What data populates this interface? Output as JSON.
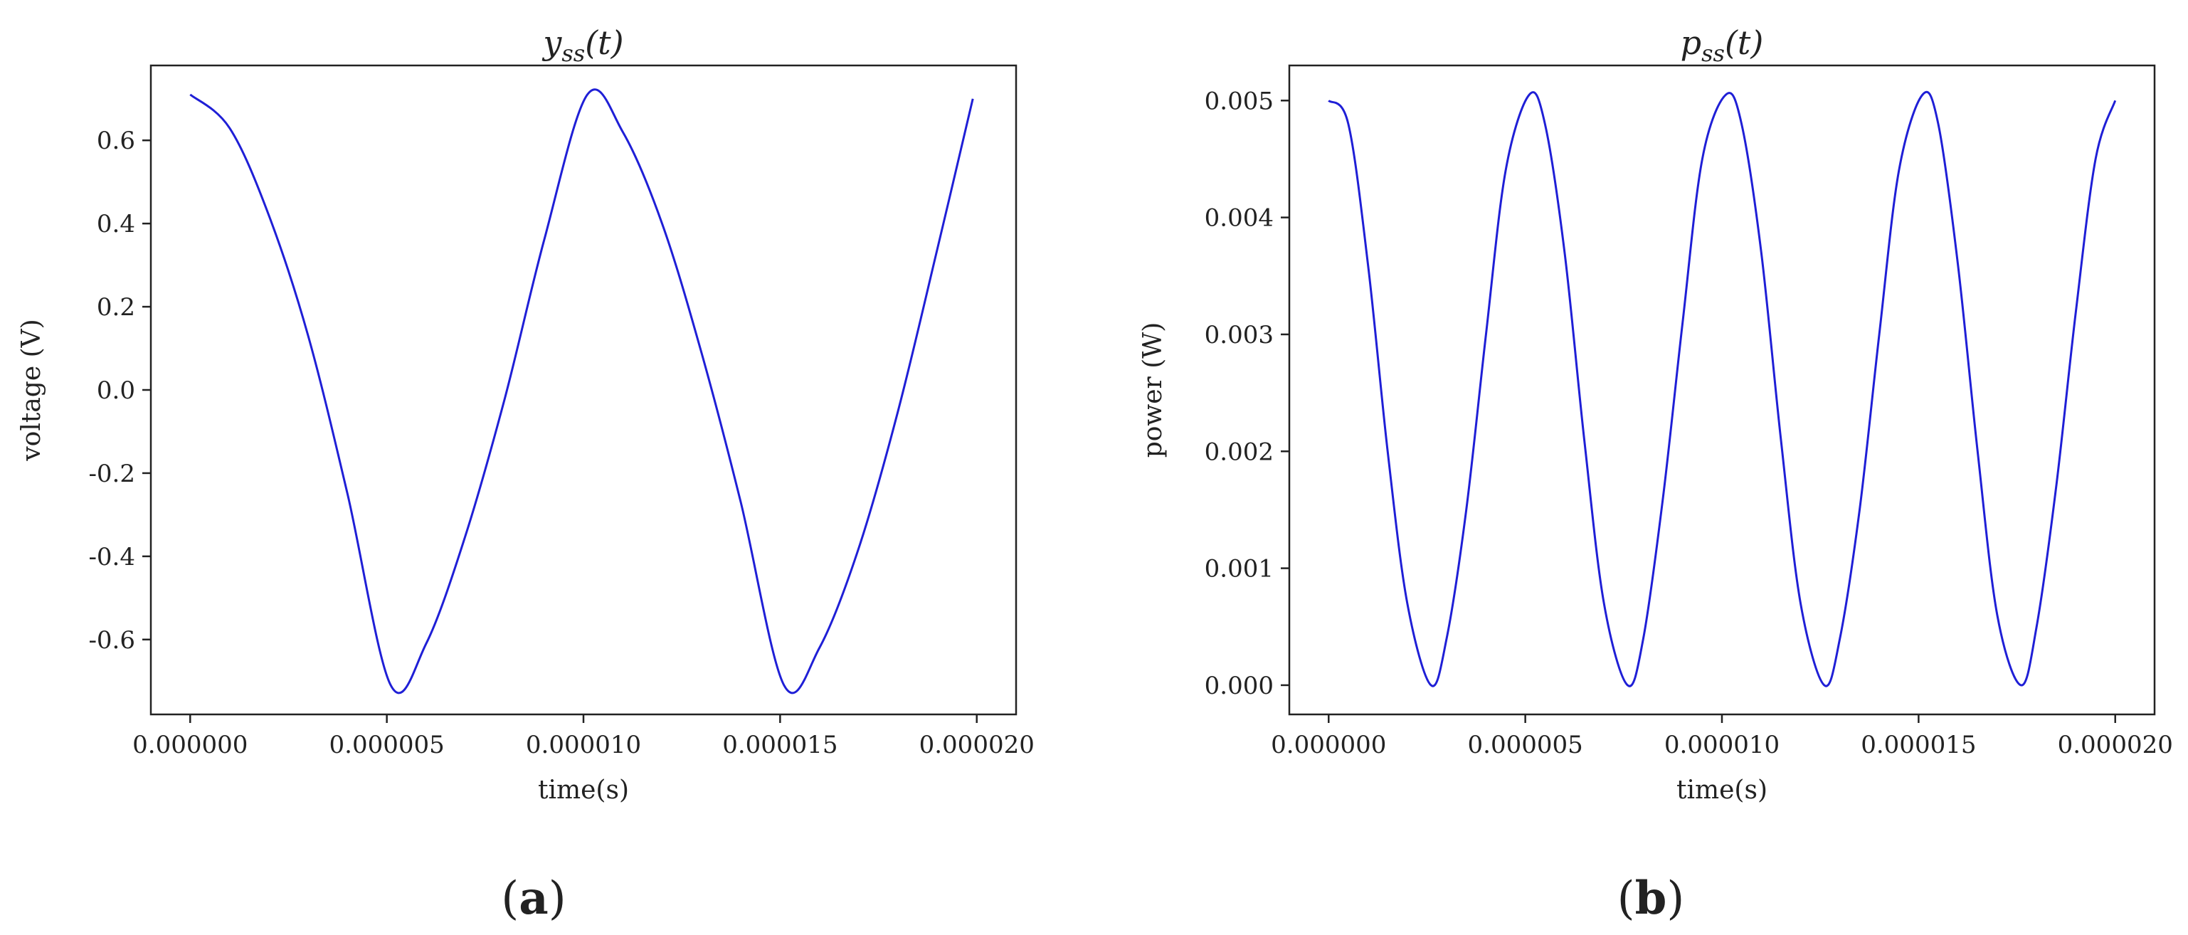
{
  "chart_data": [
    {
      "type": "line",
      "panel_label": "a",
      "title": "y_ss(t)",
      "title_base": "y",
      "title_sub": "ss",
      "title_arg": "(t)",
      "xlabel": "time(s)",
      "ylabel": "voltage (V)",
      "xlim": [
        -1e-06,
        2.1e-05
      ],
      "ylim": [
        -0.78,
        0.78
      ],
      "xticks": [
        0,
        5e-06,
        1e-05,
        1.5e-05,
        2e-05
      ],
      "xtick_labels": [
        "0.000000",
        "0.000005",
        "0.000010",
        "0.000015",
        "0.000020"
      ],
      "yticks": [
        -0.6,
        -0.4,
        -0.2,
        0.0,
        0.2,
        0.4,
        0.6
      ],
      "ytick_labels": [
        "-0.6",
        "-0.4",
        "-0.2",
        "0.0",
        "0.2",
        "0.4",
        "0.6"
      ],
      "color": "#1f1fd6",
      "grid": false,
      "series": [
        {
          "x": [
            0,
            1e-06,
            2e-06,
            3e-06,
            4e-06,
            5.1e-06,
            6e-06,
            7e-06,
            8e-06,
            9e-06,
            1.01e-05,
            1.1e-05,
            1.2e-05,
            1.3e-05,
            1.4e-05,
            1.51e-05,
            1.6e-05,
            1.7e-05,
            1.8e-05,
            1.9e-05,
            1.99e-05
          ],
          "values": [
            0.71,
            0.63,
            0.42,
            0.13,
            -0.25,
            -0.71,
            -0.61,
            -0.35,
            -0.02,
            0.36,
            0.71,
            0.62,
            0.4,
            0.09,
            -0.27,
            -0.71,
            -0.62,
            -0.38,
            -0.05,
            0.34,
            0.7
          ]
        }
      ]
    },
    {
      "type": "line",
      "panel_label": "b",
      "title": "p_ss(t)",
      "title_base": "p",
      "title_sub": "ss",
      "title_arg": "(t)",
      "xlabel": "time(s)",
      "ylabel": "power (W)",
      "xlim": [
        -1e-06,
        2.1e-05
      ],
      "ylim": [
        -0.00025,
        0.0053
      ],
      "xticks": [
        0,
        5e-06,
        1e-05,
        1.5e-05,
        2e-05
      ],
      "xtick_labels": [
        "0.000000",
        "0.000005",
        "0.000010",
        "0.000015",
        "0.000020"
      ],
      "yticks": [
        0.0,
        0.001,
        0.002,
        0.003,
        0.004,
        0.005
      ],
      "ytick_labels": [
        "0.000",
        "0.001",
        "0.002",
        "0.003",
        "0.004",
        "0.005"
      ],
      "color": "#1f1fd6",
      "grid": false,
      "series": [
        {
          "x": [
            0,
            5e-07,
            1e-06,
            1.5e-06,
            2e-06,
            2.6e-06,
            3e-06,
            3.5e-06,
            4e-06,
            4.5e-06,
            5.1e-06,
            5.5e-06,
            6e-06,
            6.5e-06,
            7e-06,
            7.6e-06,
            8e-06,
            8.5e-06,
            9e-06,
            9.5e-06,
            1.01e-05,
            1.05e-05,
            1.1e-05,
            1.15e-05,
            1.2e-05,
            1.26e-05,
            1.3e-05,
            1.35e-05,
            1.4e-05,
            1.45e-05,
            1.51e-05,
            1.55e-05,
            1.6e-05,
            1.65e-05,
            1.7e-05,
            1.76e-05,
            1.8e-05,
            1.85e-05,
            1.9e-05,
            1.95e-05,
            2e-05
          ],
          "values": [
            0.005,
            0.0048,
            0.0036,
            0.002,
            0.0007,
            0.0,
            0.0004,
            0.0015,
            0.003,
            0.0044,
            0.00505,
            0.0048,
            0.0037,
            0.0021,
            0.0007,
            0.0,
            0.0004,
            0.0016,
            0.0031,
            0.0045,
            0.00505,
            0.0048,
            0.0037,
            0.0021,
            0.0007,
            0.0,
            0.0004,
            0.0015,
            0.003,
            0.0044,
            0.00505,
            0.0048,
            0.0036,
            0.002,
            0.0006,
            0.0,
            0.0005,
            0.0017,
            0.0032,
            0.0045,
            0.005
          ]
        }
      ]
    }
  ]
}
